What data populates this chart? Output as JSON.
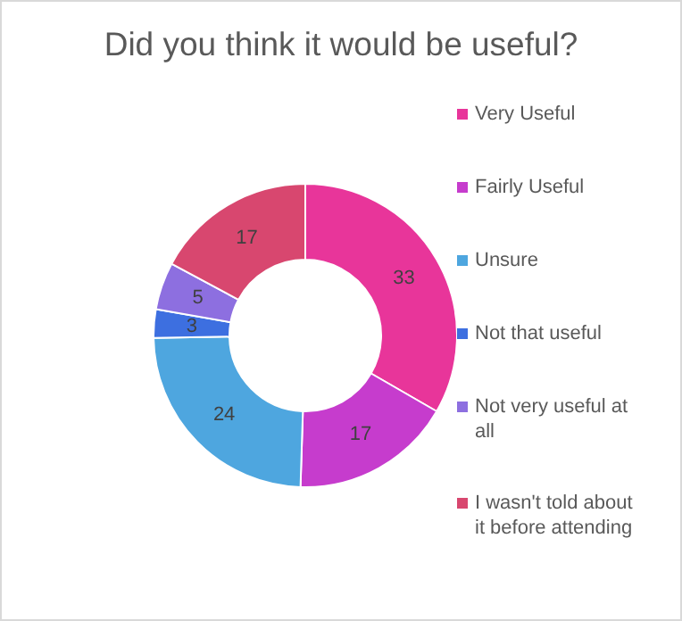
{
  "chart_data": {
    "type": "donut",
    "title": "Did you think it would be useful?",
    "categories": [
      "Very Useful",
      "Fairly Useful",
      "Unsure",
      "Not that useful",
      "Not very useful at all",
      "I wasn't told about it before attending"
    ],
    "values": [
      33,
      17,
      24,
      3,
      5,
      17
    ],
    "colors": [
      "#e8359a",
      "#c63ccd",
      "#4ea6df",
      "#3d6fe0",
      "#8d6fe0",
      "#d8476f"
    ],
    "data_labels": true,
    "legend": "right"
  }
}
